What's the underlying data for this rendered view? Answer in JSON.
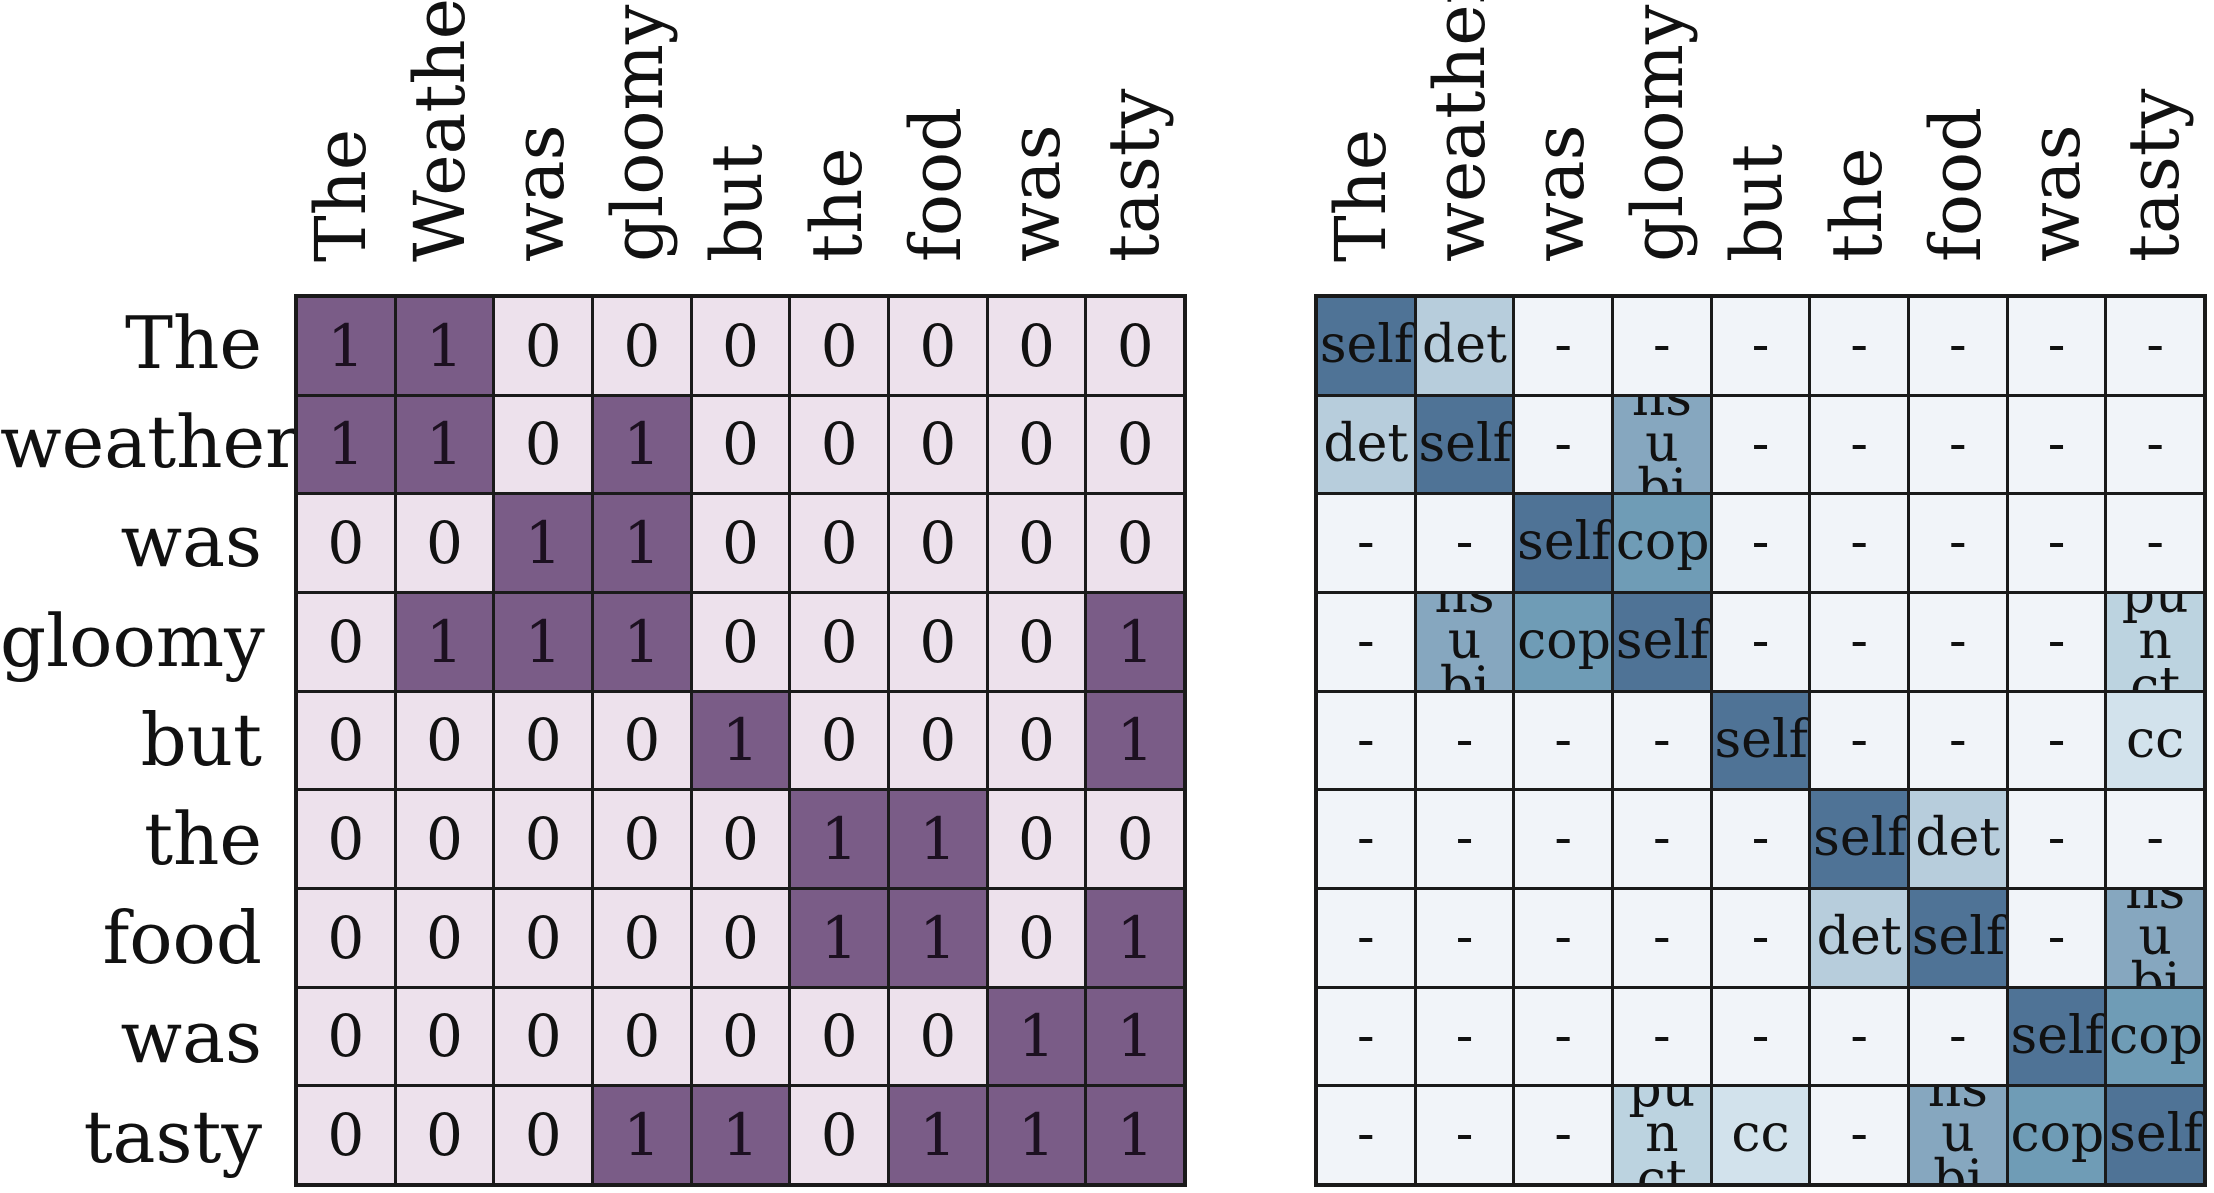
{
  "row_labels": [
    "The",
    "weather",
    "was",
    "gloomy",
    "but",
    "the",
    "food",
    "was",
    "tasty"
  ],
  "left_column_labels": [
    "The",
    "Weather",
    "was",
    "gloomy",
    "but",
    "the",
    "food",
    "was",
    "tasty"
  ],
  "right_column_labels": [
    "The",
    "weather",
    "was",
    "gloomy",
    "but",
    "the",
    "food",
    "was",
    "tasty"
  ],
  "colors": {
    "adjacency_zero": "#ede1ec",
    "adjacency_one": "#7a5c87",
    "dep_none": "#f1f4f9",
    "dep_self": "#4f7396",
    "dep_det": "#b7cddc",
    "dep_nsubj": "#86a7bf",
    "dep_cop": "#6f9cb6",
    "dep_punct": "#bcd3e0",
    "dep_cc": "#d2e2ec"
  },
  "adjacency_matrix": [
    [
      "1",
      "1",
      "0",
      "0",
      "0",
      "0",
      "0",
      "0",
      "0"
    ],
    [
      "1",
      "1",
      "0",
      "1",
      "0",
      "0",
      "0",
      "0",
      "0"
    ],
    [
      "0",
      "0",
      "1",
      "1",
      "0",
      "0",
      "0",
      "0",
      "0"
    ],
    [
      "0",
      "1",
      "1",
      "1",
      "0",
      "0",
      "0",
      "0",
      "1"
    ],
    [
      "0",
      "0",
      "0",
      "0",
      "1",
      "0",
      "0",
      "0",
      "1"
    ],
    [
      "0",
      "0",
      "0",
      "0",
      "0",
      "1",
      "1",
      "0",
      "0"
    ],
    [
      "0",
      "0",
      "0",
      "0",
      "0",
      "1",
      "1",
      "0",
      "1"
    ],
    [
      "0",
      "0",
      "0",
      "0",
      "0",
      "0",
      "0",
      "1",
      "1"
    ],
    [
      "0",
      "0",
      "0",
      "1",
      "1",
      "0",
      "1",
      "1",
      "1"
    ]
  ],
  "dependency_matrix": [
    [
      "self",
      "det",
      "-",
      "-",
      "-",
      "-",
      "-",
      "-",
      "-"
    ],
    [
      "det",
      "self",
      "-",
      "nsubj",
      "-",
      "-",
      "-",
      "-",
      "-"
    ],
    [
      "-",
      "-",
      "self",
      "cop",
      "-",
      "-",
      "-",
      "-",
      "-"
    ],
    [
      "-",
      "nsubj",
      "cop",
      "self",
      "-",
      "-",
      "-",
      "-",
      "punct"
    ],
    [
      "-",
      "-",
      "-",
      "-",
      "self",
      "-",
      "-",
      "-",
      "cc"
    ],
    [
      "-",
      "-",
      "-",
      "-",
      "-",
      "self",
      "det",
      "-",
      "-"
    ],
    [
      "-",
      "-",
      "-",
      "-",
      "-",
      "det",
      "self",
      "-",
      "nsubj"
    ],
    [
      "-",
      "-",
      "-",
      "-",
      "-",
      "-",
      "-",
      "self",
      "cop"
    ],
    [
      "-",
      "-",
      "-",
      "punct",
      "cc",
      "-",
      "nsubj",
      "cop",
      "self"
    ]
  ]
}
